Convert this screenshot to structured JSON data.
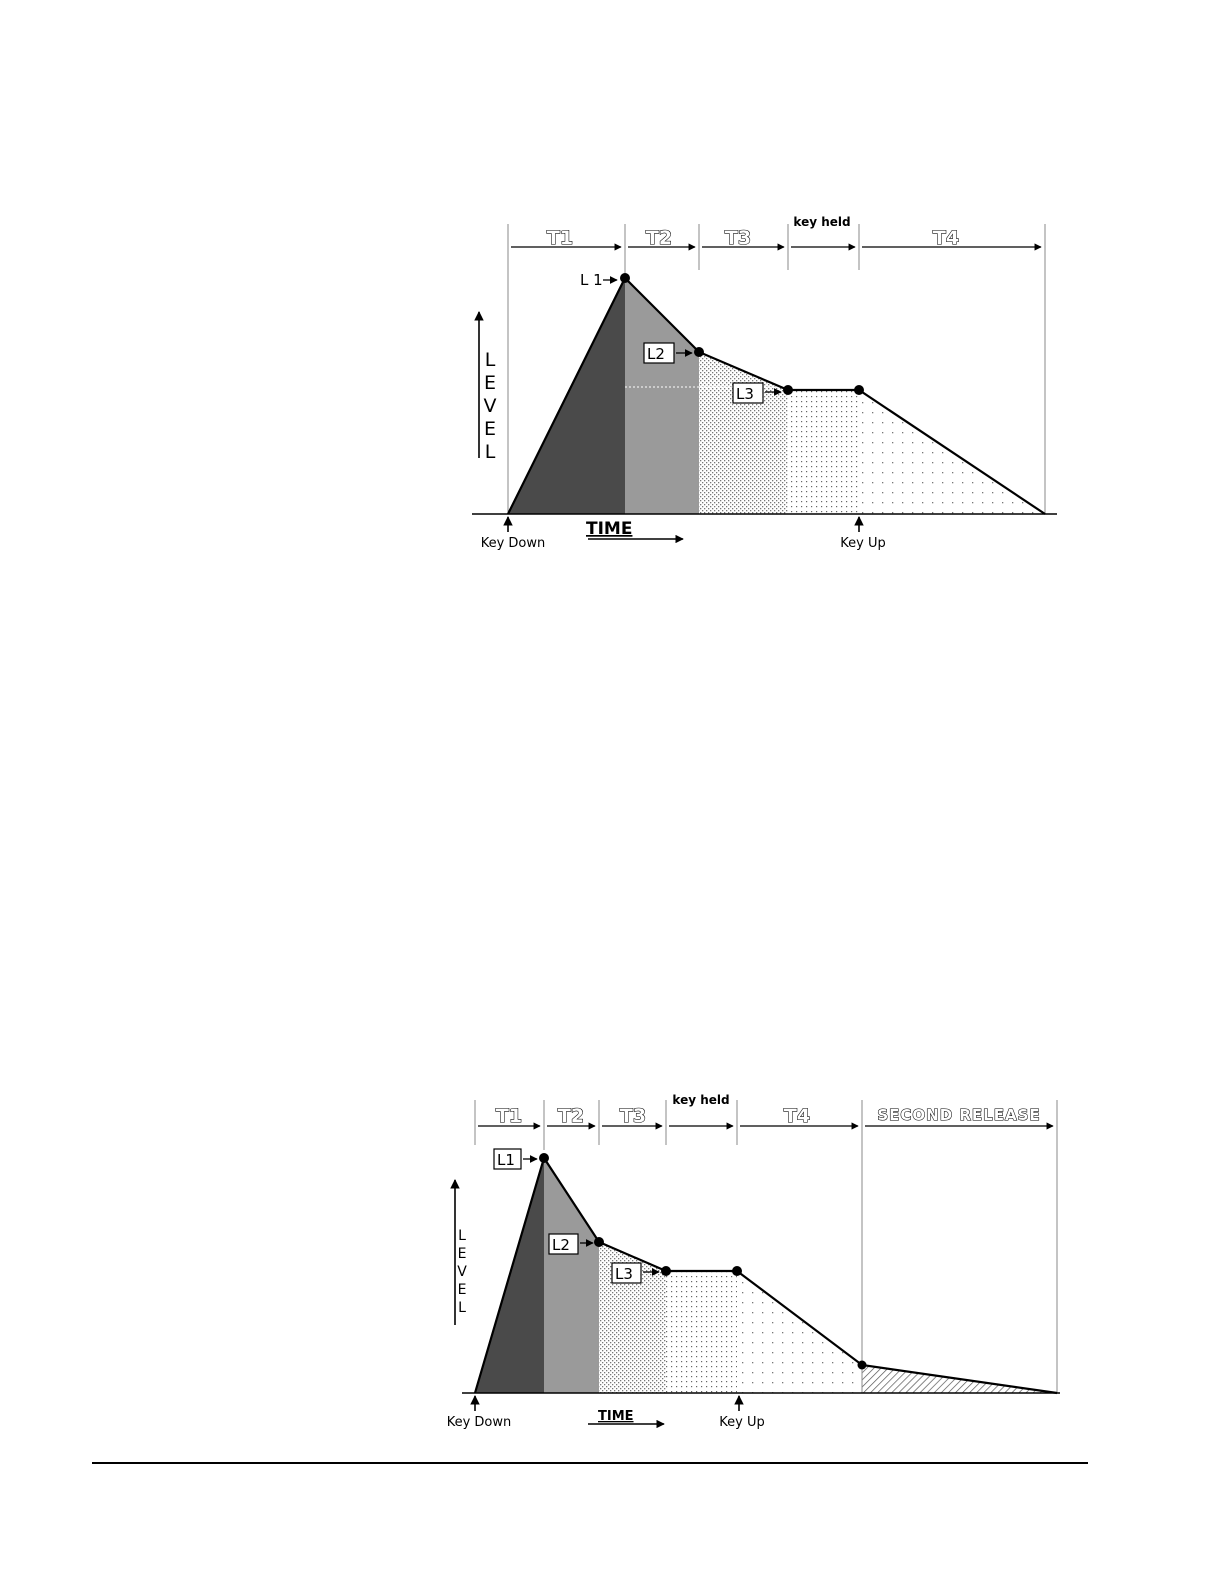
{
  "diagram1": {
    "segments": [
      "T1",
      "T2",
      "T3",
      "key held",
      "T4"
    ],
    "levels": [
      "L 1",
      "L2",
      "L3"
    ],
    "axis_y": "LEVEL",
    "axis_x": "TIME",
    "key_down": "Key Down",
    "key_up": "Key Up"
  },
  "diagram2": {
    "segments": [
      "T1",
      "T2",
      "T3",
      "key held",
      "T4",
      "SECOND RELEASE"
    ],
    "levels": [
      "L1",
      "L2",
      "L3"
    ],
    "axis_y": "LEVEL",
    "axis_x": "TIME",
    "key_down": "Key Down",
    "key_up": "Key Up"
  },
  "colors": {
    "t1_fill": "#4a4a4a",
    "t2_fill": "#9a9a9a",
    "outline": "#000000"
  }
}
